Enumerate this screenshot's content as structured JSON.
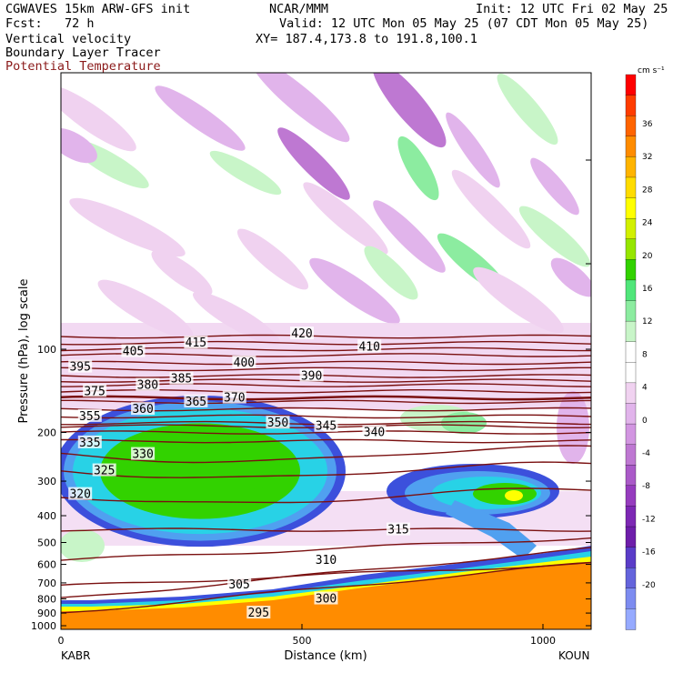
{
  "header": {
    "model_line": "CGWAVES 15km ARW-GFS init",
    "fcst_line": "Fcst:   72 h",
    "field1": "Vertical velocity",
    "field2": "Boundary Layer Tracer",
    "field3": "Potential Temperature",
    "center_line": "NCAR/MMM",
    "valid_line": "Valid: 12 UTC Mon 05 May 25 (07 CDT Mon 05 May 25)",
    "xy_line": "XY= 187.4,173.8 to 191.8,100.1",
    "init_line": "Init: 12 UTC Fri 02 May 25"
  },
  "colors": {
    "theta_contour": "#7a1010",
    "field3_text": "#8b1a1a",
    "orange_fill": "#ff8c00"
  },
  "chart_data": {
    "type": "cross-section",
    "ylabel": "Pressure (hPa), log scale",
    "xlabel": "Distance (km)",
    "x_ticks": [
      0,
      500,
      1000
    ],
    "x_range": [
      0,
      1100
    ],
    "x_endpoints": [
      "KABR",
      "KOUN"
    ],
    "y_ticks": [
      100,
      200,
      300,
      400,
      500,
      600,
      700,
      800,
      900,
      1000
    ],
    "y_range_hpa": [
      1000,
      25
    ],
    "colorbar": {
      "units": "cm s⁻¹",
      "labels": [
        36,
        32,
        28,
        24,
        20,
        16,
        12,
        8,
        4,
        0,
        -4,
        -8,
        -12,
        -16,
        -20
      ],
      "colors": [
        "#ff0000",
        "#ff3c00",
        "#ff6400",
        "#ff8c00",
        "#ffb400",
        "#ffdc00",
        "#ffff00",
        "#d2f000",
        "#96e600",
        "#32d200",
        "#50e67a",
        "#8ceca0",
        "#c8f5c8",
        "#ffffff",
        "#ffffff",
        "#f0d2f0",
        "#e1b4eb",
        "#d296e1",
        "#be78d2",
        "#aa5ac8",
        "#963cbe",
        "#7d28b4",
        "#6e1eaa",
        "#5a3cc8",
        "#6464dc",
        "#7d8cf0",
        "#96aaff"
      ]
    },
    "theta_contours": [
      {
        "value": 420,
        "pressure_hpa": 90
      },
      {
        "value": 415,
        "pressure_hpa": 95
      },
      {
        "value": 410,
        "pressure_hpa": 100
      },
      {
        "value": 405,
        "pressure_hpa": 105
      },
      {
        "value": 400,
        "pressure_hpa": 112
      },
      {
        "value": 395,
        "pressure_hpa": 118
      },
      {
        "value": 390,
        "pressure_hpa": 125
      },
      {
        "value": 385,
        "pressure_hpa": 130
      },
      {
        "value": 380,
        "pressure_hpa": 135
      },
      {
        "value": 375,
        "pressure_hpa": 142
      },
      {
        "value": 370,
        "pressure_hpa": 150
      },
      {
        "value": 365,
        "pressure_hpa": 155
      },
      {
        "value": 360,
        "pressure_hpa": 165
      },
      {
        "value": 355,
        "pressure_hpa": 175
      },
      {
        "value": 350,
        "pressure_hpa": 185
      },
      {
        "value": 345,
        "pressure_hpa": 190
      },
      {
        "value": 340,
        "pressure_hpa": 200
      },
      {
        "value": 335,
        "pressure_hpa": 215
      },
      {
        "value": 330,
        "pressure_hpa": 240
      },
      {
        "value": 325,
        "pressure_hpa": 275
      },
      {
        "value": 320,
        "pressure_hpa": 340
      },
      {
        "value": 315,
        "pressure_hpa": 450
      },
      {
        "value": 310,
        "pressure_hpa": 580
      },
      {
        "value": 305,
        "pressure_hpa": 720
      },
      {
        "value": 300,
        "pressure_hpa": 800
      },
      {
        "value": 295,
        "pressure_hpa": 900
      }
    ],
    "contour_labels": [
      {
        "text": "420",
        "km": 500,
        "p": 88
      },
      {
        "text": "415",
        "km": 280,
        "p": 95
      },
      {
        "text": "410",
        "km": 640,
        "p": 98
      },
      {
        "text": "405",
        "km": 150,
        "p": 102
      },
      {
        "text": "395",
        "km": 40,
        "p": 116
      },
      {
        "text": "400",
        "km": 380,
        "p": 112
      },
      {
        "text": "390",
        "km": 520,
        "p": 125
      },
      {
        "text": "385",
        "km": 250,
        "p": 128
      },
      {
        "text": "380",
        "km": 180,
        "p": 135
      },
      {
        "text": "375",
        "km": 70,
        "p": 142
      },
      {
        "text": "370",
        "km": 360,
        "p": 150
      },
      {
        "text": "365",
        "km": 280,
        "p": 155
      },
      {
        "text": "360",
        "km": 170,
        "p": 165
      },
      {
        "text": "355",
        "km": 60,
        "p": 175
      },
      {
        "text": "350",
        "km": 450,
        "p": 185
      },
      {
        "text": "345",
        "km": 550,
        "p": 190
      },
      {
        "text": "340",
        "km": 650,
        "p": 200
      },
      {
        "text": "335",
        "km": 60,
        "p": 218
      },
      {
        "text": "330",
        "km": 170,
        "p": 240
      },
      {
        "text": "325",
        "km": 90,
        "p": 275
      },
      {
        "text": "320",
        "km": 40,
        "p": 335
      },
      {
        "text": "315",
        "km": 700,
        "p": 450
      },
      {
        "text": "310",
        "km": 550,
        "p": 580
      },
      {
        "text": "305",
        "km": 370,
        "p": 710
      },
      {
        "text": "300",
        "km": 550,
        "p": 800
      },
      {
        "text": "295",
        "km": 410,
        "p": 900
      }
    ]
  }
}
